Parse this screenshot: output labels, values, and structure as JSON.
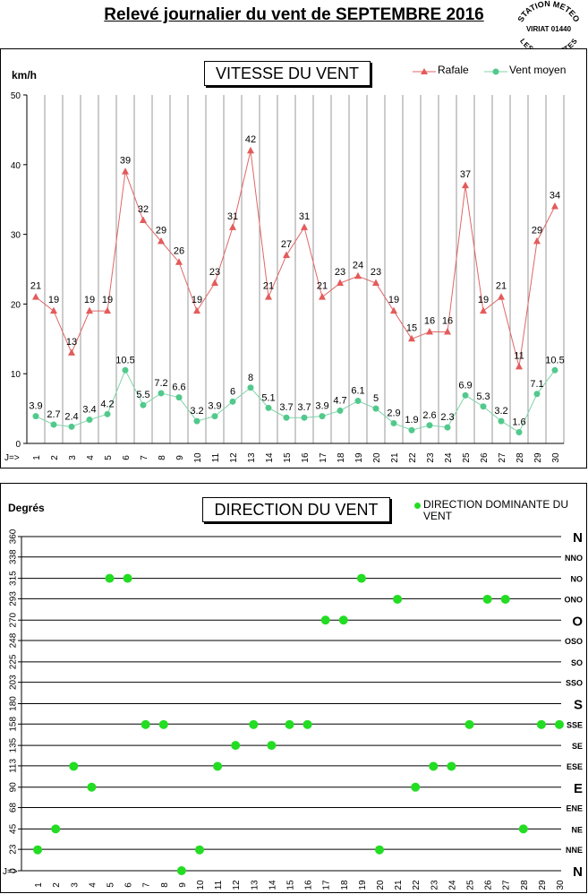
{
  "page": {
    "title": "Relevé journalier du vent de SEPTEMBRE 2016",
    "stamp": {
      "top": "STATION METEO",
      "middle": "VIRIAT 01440",
      "bottom": "LES FAUVETTES"
    }
  },
  "colors": {
    "gust": "#e06666",
    "gust_marker": "#e35b5b",
    "mean": "#7fd3aa",
    "mean_marker": "#52c98c",
    "direction_dot": "#22dd22",
    "grid": "#000000",
    "vgrid": "#999999"
  },
  "chart_data": [
    {
      "type": "line",
      "title": "VITESSE DU VENT",
      "ylabel": "km/h",
      "xlabel_prefix": "J=>",
      "ylim": [
        0,
        50
      ],
      "yticks": [
        0,
        10,
        20,
        30,
        40,
        50
      ],
      "categories": [
        "1",
        "2",
        "3",
        "4",
        "5",
        "6",
        "7",
        "8",
        "9",
        "10",
        "11",
        "12",
        "13",
        "14",
        "15",
        "16",
        "17",
        "18",
        "19",
        "20",
        "21",
        "22",
        "23",
        "24",
        "25",
        "26",
        "27",
        "28",
        "29",
        "30"
      ],
      "legend_position": "top-right",
      "grid": "vertical",
      "series": [
        {
          "name": "Rafale",
          "marker": "triangle",
          "values": [
            21,
            19,
            13,
            19,
            19,
            39,
            32,
            29,
            26,
            19,
            23,
            31,
            42,
            21,
            27,
            31,
            21,
            23,
            24,
            23,
            19,
            15,
            16,
            16,
            37,
            19,
            21,
            11,
            29,
            34
          ],
          "labels": [
            "21",
            "19",
            "13",
            "19",
            "19",
            "39",
            "32",
            "29",
            "26",
            "19",
            "23",
            "31",
            "42",
            "21",
            "27",
            "31",
            "21",
            "23",
            "24",
            "23",
            "19",
            "15",
            "16",
            "16",
            "37",
            "19",
            "21",
            "11",
            "29",
            "34"
          ]
        },
        {
          "name": "Vent moyen",
          "marker": "circle",
          "values": [
            3.9,
            2.7,
            2.4,
            3.4,
            4.2,
            10.5,
            5.5,
            7.2,
            6.6,
            3.2,
            3.9,
            6,
            8,
            5.1,
            3.7,
            3.7,
            3.9,
            4.7,
            6.1,
            5,
            2.9,
            1.9,
            2.6,
            2.3,
            6.9,
            5.3,
            3.2,
            1.6,
            7.1,
            10.5
          ],
          "labels": [
            "3.9",
            "2.7",
            "2.4",
            "3.4",
            "4.2",
            "10.5",
            "5.5",
            "7.2",
            "6.6",
            "3.2",
            "3.9",
            "6",
            "8",
            "5.1",
            "3.7",
            "3.7",
            "3.9",
            "4.7",
            "6.1",
            "5",
            "2.9",
            "1.9",
            "2.6",
            "2.3",
            "6.9",
            "5.3",
            "3.2",
            "1.6",
            "7.1",
            "10.5"
          ]
        }
      ]
    },
    {
      "type": "scatter",
      "title": "DIRECTION DU VENT",
      "ylabel": "Degrés",
      "xlabel_prefix": "J=>",
      "ylim": [
        0,
        360
      ],
      "yticks": [
        0,
        23,
        45,
        68,
        90,
        113,
        135,
        158,
        180,
        203,
        225,
        248,
        270,
        293,
        315,
        338,
        360
      ],
      "compass": [
        "N",
        "NNE",
        "NE",
        "ENE",
        "E",
        "ESE",
        "SE",
        "SSE",
        "S",
        "SSO",
        "SO",
        "OSO",
        "O",
        "ONO",
        "NO",
        "NNO",
        "N"
      ],
      "categories": [
        "1",
        "2",
        "3",
        "4",
        "5",
        "6",
        "7",
        "8",
        "9",
        "10",
        "11",
        "12",
        "13",
        "14",
        "15",
        "16",
        "17",
        "18",
        "19",
        "20",
        "21",
        "22",
        "23",
        "24",
        "25",
        "26",
        "27",
        "28",
        "29",
        "30"
      ],
      "legend_position": "top-right",
      "series": [
        {
          "name": "DIRECTION DOMINANTE DU VENT",
          "values": [
            22.5,
            45,
            112.5,
            90,
            315,
            315,
            157.5,
            157.5,
            0,
            22.5,
            112.5,
            135,
            157.5,
            135,
            157.5,
            157.5,
            270,
            270,
            315,
            22.5,
            292.5,
            90,
            112.5,
            112.5,
            157.5,
            292.5,
            292.5,
            45,
            157.5,
            157.5
          ]
        }
      ]
    }
  ]
}
